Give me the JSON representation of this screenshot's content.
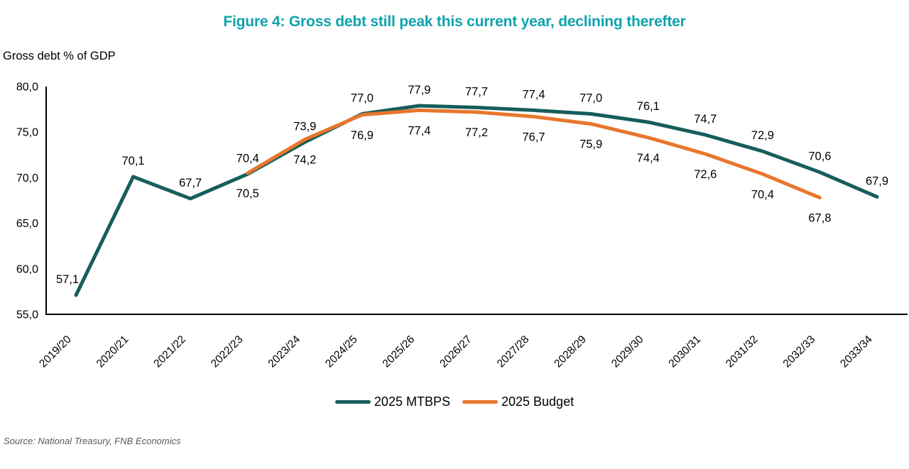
{
  "title": "Figure 4: Gross debt still peak this current year, declining therefter",
  "y_axis_title": "Gross debt % of GDP",
  "source": "Source: National Treasury, FNB Economics",
  "colors": {
    "title_teal": "#0FA3AC",
    "mtbps_teal": "#155E5B",
    "budget_orange": "#E8762C",
    "axis": "#000000",
    "source_gray": "#595959"
  },
  "chart_data": {
    "type": "line",
    "title": "Figure 4: Gross debt still peak this current year, declining therefter",
    "ylabel": "Gross debt % of GDP",
    "xlabel": "",
    "categories": [
      "2019/20",
      "2020/21",
      "2021/22",
      "2022/23",
      "2023/24",
      "2024/25",
      "2025/26",
      "2026/27",
      "2027/28",
      "2028/29",
      "2029/30",
      "2030/31",
      "2031/32",
      "2032/33",
      "2033/34"
    ],
    "series": [
      {
        "name": "2025 MTBPS",
        "color": "#155E5B",
        "label_position": "above",
        "values": [
          57.1,
          70.1,
          67.7,
          70.4,
          73.9,
          77.0,
          77.9,
          77.7,
          77.4,
          77.0,
          76.1,
          74.7,
          72.9,
          70.6,
          67.9
        ]
      },
      {
        "name": "2025 Budget",
        "color": "#E8762C",
        "label_position": "below",
        "values": [
          null,
          null,
          null,
          70.5,
          74.2,
          76.9,
          77.4,
          77.2,
          76.7,
          75.9,
          74.4,
          72.6,
          70.4,
          67.8,
          null
        ]
      }
    ],
    "ylim": [
      55.0,
      80.0
    ],
    "ytick_step": 5.0,
    "decimal_separator": ",",
    "grid": false,
    "data_labels": true,
    "legend_position": "bottom",
    "x_label_rotation_deg": -45
  }
}
